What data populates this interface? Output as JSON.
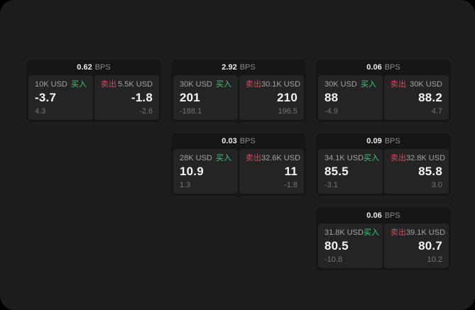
{
  "labels": {
    "bps_unit": "BPS",
    "buy": "买入",
    "sell": "卖出"
  },
  "colors": {
    "background": "#1d1d1d",
    "card": "#161616",
    "panel": "#242424",
    "buy_text": "#3ecb7c",
    "sell_text": "#cf4b62"
  },
  "cards": [
    {
      "bps": "0.62",
      "col": 0,
      "row": 0,
      "buy": {
        "amount": "10K USD",
        "price": "-3.7",
        "delta": "4.3"
      },
      "sell": {
        "amount": "5.5K USD",
        "price": "-1.8",
        "delta": "-2.6"
      }
    },
    {
      "bps": "2.92",
      "col": 1,
      "row": 0,
      "buy": {
        "amount": "30K USD",
        "price": "201",
        "delta": "-188.1"
      },
      "sell": {
        "amount": "30.1K USD",
        "price": "210",
        "delta": "196.5"
      }
    },
    {
      "bps": "0.06",
      "col": 2,
      "row": 0,
      "buy": {
        "amount": "30K USD",
        "price": "88",
        "delta": "-4.9"
      },
      "sell": {
        "amount": "30K USD",
        "price": "88.2",
        "delta": "4.7"
      }
    },
    {
      "bps": "0.03",
      "col": 1,
      "row": 1,
      "buy": {
        "amount": "28K USD",
        "price": "10.9",
        "delta": "1.3"
      },
      "sell": {
        "amount": "32.6K USD",
        "price": "11",
        "delta": "-1.8"
      }
    },
    {
      "bps": "0.09",
      "col": 2,
      "row": 1,
      "buy": {
        "amount": "34.1K USD",
        "price": "85.5",
        "delta": "-3.1"
      },
      "sell": {
        "amount": "32.8K USD",
        "price": "85.8",
        "delta": "3.0"
      }
    },
    {
      "bps": "0.06",
      "col": 2,
      "row": 2,
      "buy": {
        "amount": "31.8K USD",
        "price": "80.5",
        "delta": "-10.8"
      },
      "sell": {
        "amount": "39.1K USD",
        "price": "80.7",
        "delta": "10.2"
      }
    }
  ]
}
